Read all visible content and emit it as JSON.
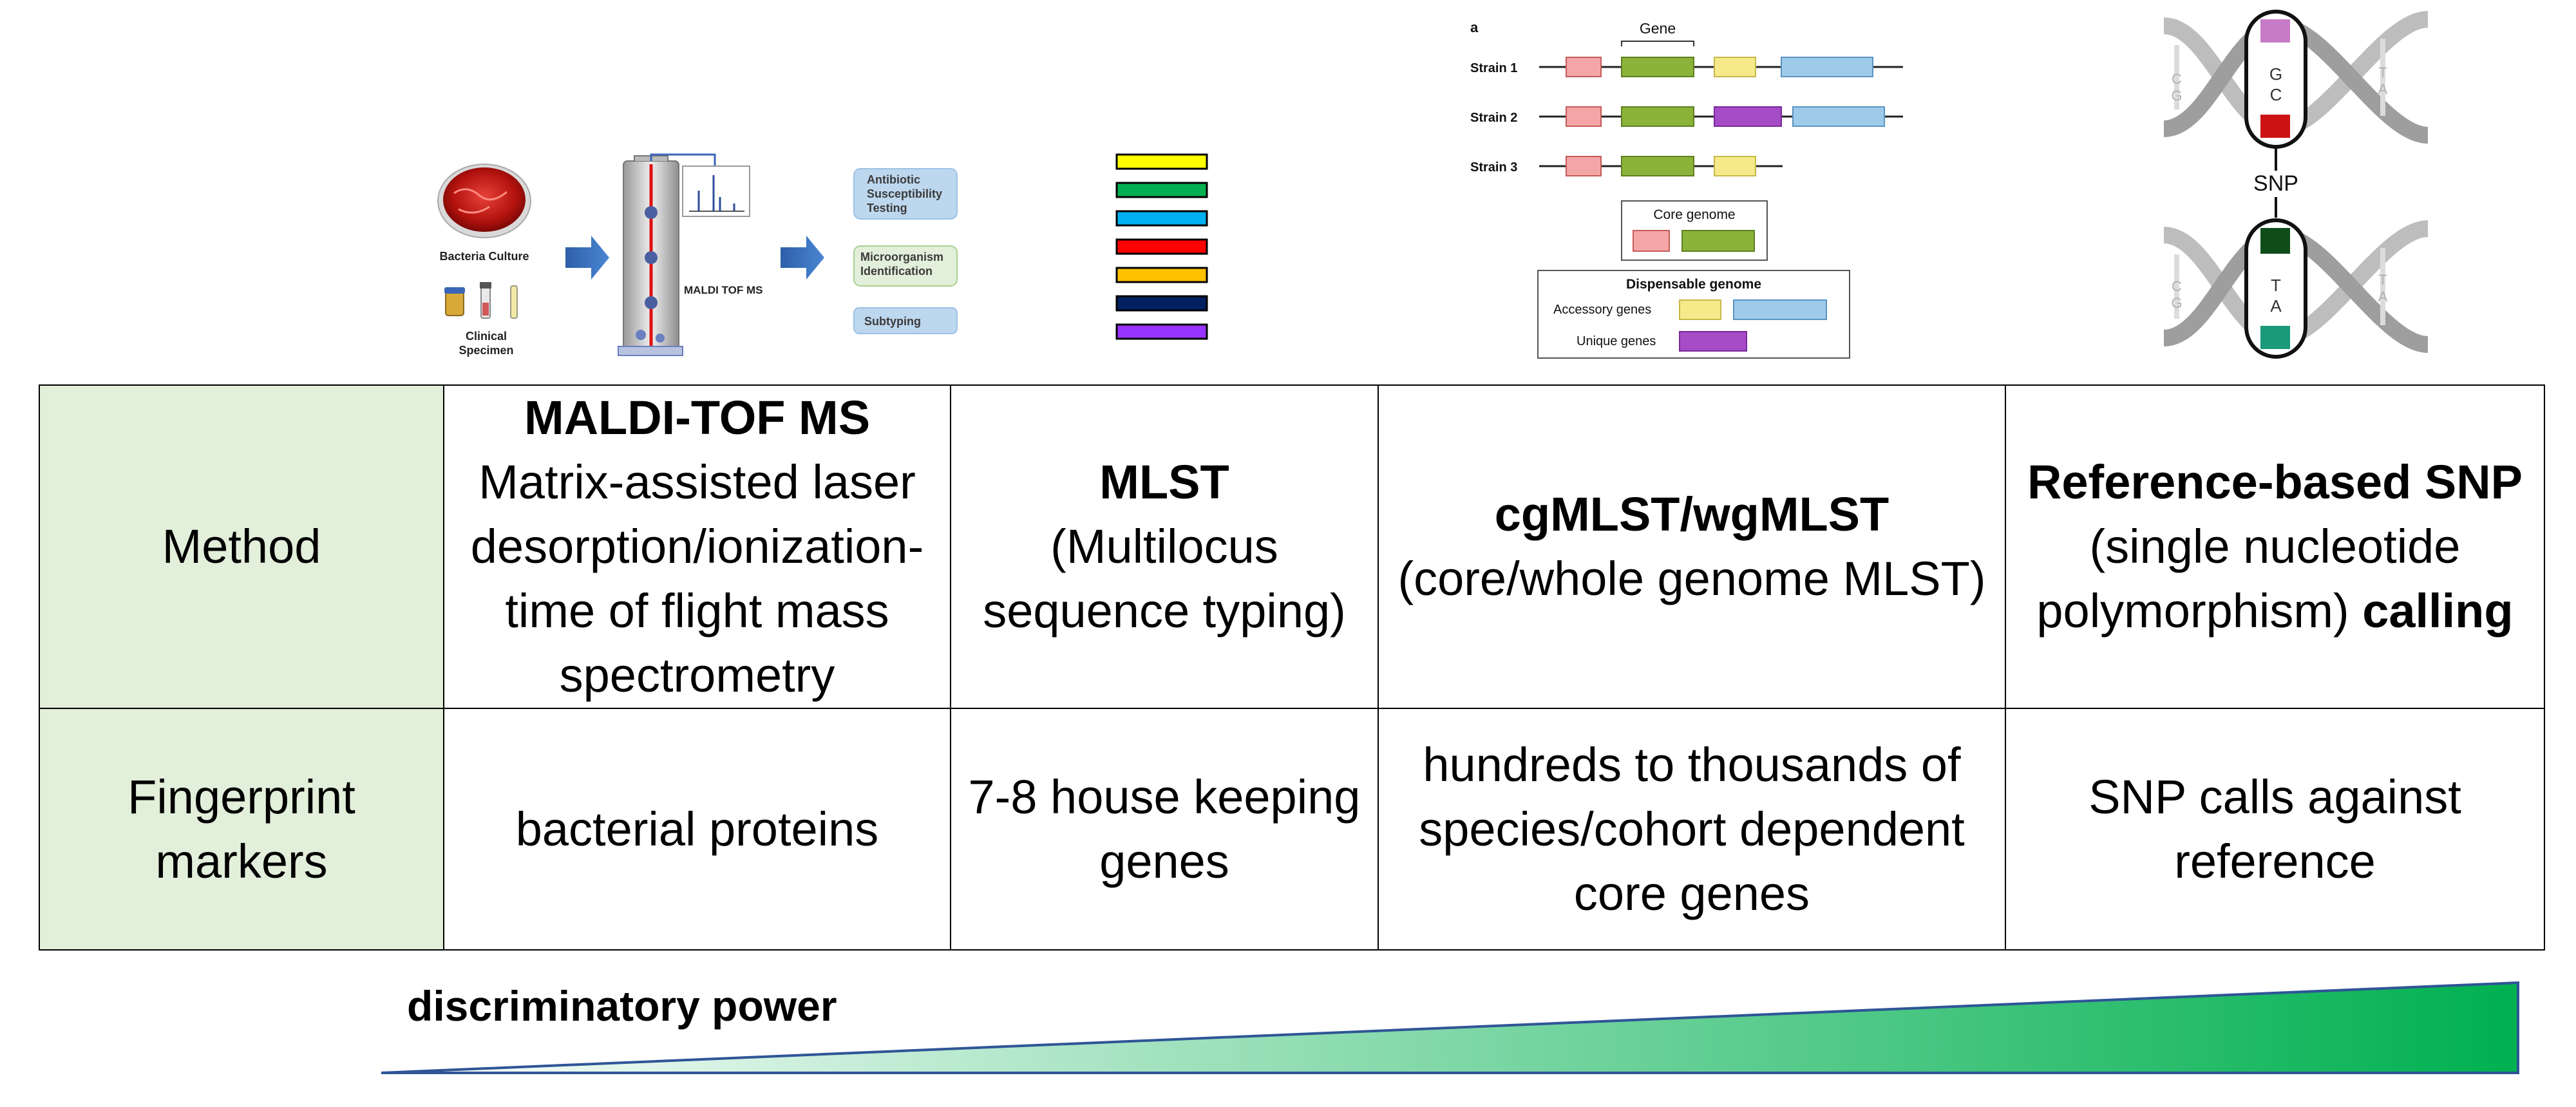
{
  "illustrations": {
    "maldi": {
      "culture_label": "Bacteria Culture",
      "specimen_label_1": "Clinical",
      "specimen_label_2": "Specimen",
      "instrument_label": "MALDI TOF MS",
      "outputs": [
        {
          "lines": [
            "Antibiotic",
            "Susceptibility",
            "Testing"
          ]
        },
        {
          "lines": [
            "Microorganism",
            "Identification"
          ]
        },
        {
          "lines": [
            "Subtyping"
          ]
        }
      ]
    },
    "mlst_bar_colors": [
      "#ffff00",
      "#00b050",
      "#00b0f0",
      "#ff0000",
      "#ffc000",
      "#002060",
      "#9933ff"
    ],
    "cgmlst": {
      "panel_letter": "a",
      "gene_label": "Gene",
      "strains": [
        "Strain 1",
        "Strain 2",
        "Strain 3"
      ],
      "core_title": "Core genome",
      "dispensable_title": "Dispensable genome",
      "accessory_label": "Accessory genes",
      "unique_label": "Unique genes"
    },
    "snp": {
      "label": "SNP",
      "top_pair": [
        "G",
        "C"
      ],
      "bottom_pair": [
        "T",
        "A"
      ],
      "side_pairs": [
        "C",
        "G",
        "T",
        "A"
      ]
    }
  },
  "table": {
    "row_headers": [
      "Method",
      "Fingerprint markers"
    ],
    "methods": [
      {
        "title": "MALDI-TOF MS",
        "desc": "Matrix-assisted laser desorption/ionization-time of flight mass spectrometry"
      },
      {
        "title": "MLST",
        "desc": "(Multilocus sequence typing)"
      },
      {
        "title": "cgMLST/wgMLST",
        "desc": "(core/whole genome MLST)"
      },
      {
        "title": "Reference-based SNP",
        "desc": "(single nucleotide polymorphism)",
        "suffix": "calling"
      }
    ],
    "markers": [
      "bacterial proteins",
      "7-8 house keeping genes",
      "hundreds to thousands of species/cohort dependent core genes",
      "SNP calls against reference"
    ]
  },
  "power_label": "discriminatory power"
}
